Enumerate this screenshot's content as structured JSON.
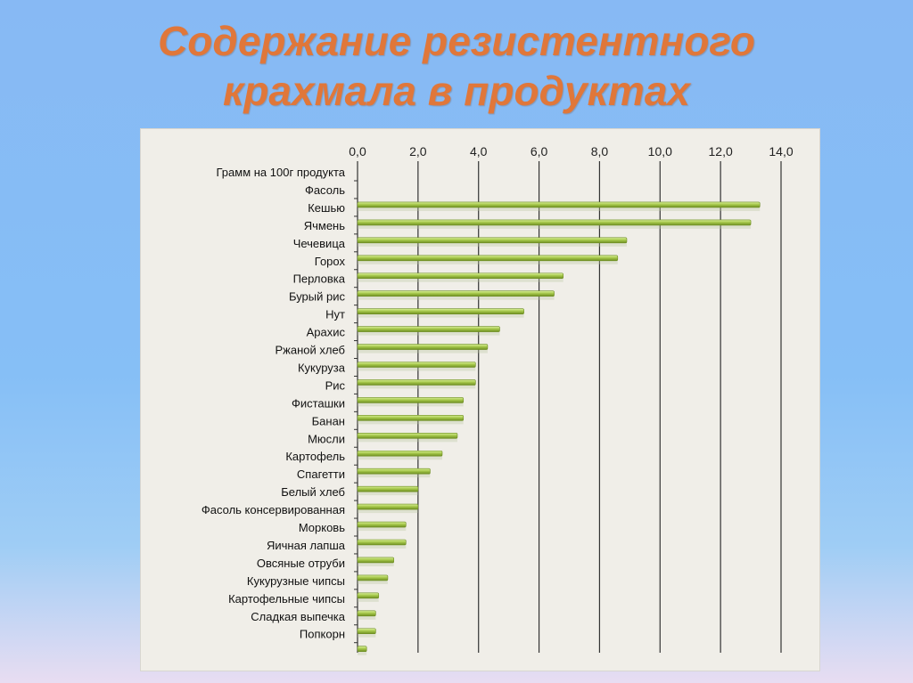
{
  "page": {
    "title_line1": "Содержание резистентного",
    "title_line2": "крахмала в продуктах"
  },
  "colors": {
    "title": "#e0773a",
    "bar_light": "#d9ef9a",
    "bar_mid": "#a7c94c",
    "bar_dark": "#6e8e22",
    "grid": "#333333",
    "panel": "#f0eee8"
  },
  "chart_data": {
    "type": "bar",
    "orientation": "horizontal",
    "xlim": [
      0,
      14
    ],
    "xticks": [
      "0,0",
      "2,0",
      "4,0",
      "6,0",
      "8,0",
      "10,0",
      "12,0",
      "14,0"
    ],
    "xtick_values": [
      0,
      2,
      4,
      6,
      8,
      10,
      12,
      14
    ],
    "x_axis_position": "top",
    "grid": true,
    "categories": [
      "Грамм на 100г продукта",
      "Фасоль",
      "Кешью",
      "Ячмень",
      "Чечевица",
      "Горох",
      "Перловка",
      "Бурый рис",
      "Нут",
      "Арахис",
      "Ржаной хлеб",
      "Кукуруза",
      "Рис",
      "Фисташки",
      "Банан",
      "Мюсли",
      "Картофель",
      "Спагетти",
      "Белый хлеб",
      "Фасоль консервированная",
      "Морковь",
      "Яичная лапша",
      "Овсяные отруби",
      "Кукурузные чипсы",
      "Картофельные чипсы",
      "Сладкая выпечка",
      "Попкорн"
    ],
    "values": [
      null,
      13.3,
      13.0,
      8.9,
      8.6,
      6.8,
      6.5,
      5.5,
      4.7,
      4.3,
      3.9,
      3.9,
      3.5,
      3.5,
      3.3,
      2.8,
      2.4,
      2.0,
      2.0,
      1.6,
      1.6,
      1.2,
      1.0,
      0.7,
      0.6,
      0.6,
      0.3
    ]
  }
}
